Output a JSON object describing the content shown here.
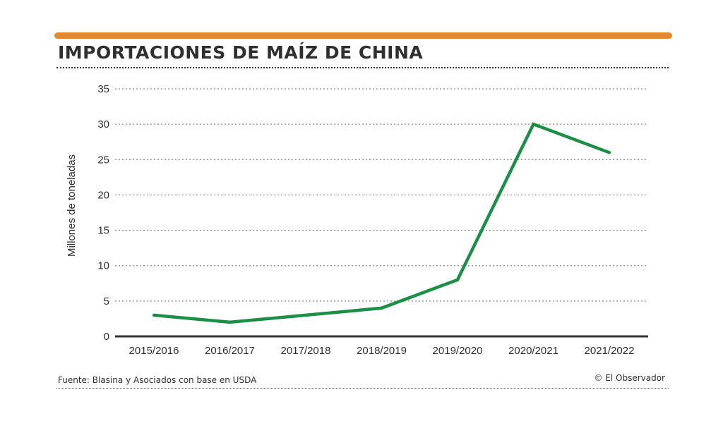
{
  "header": {
    "title": "IMPORTACIONES DE MAÍZ DE CHINA"
  },
  "footer": {
    "source": "Fuente: Blasina y Asociados con base en USDA",
    "credit": "© El Observador"
  },
  "colors": {
    "accent_bar": "#e58a2c",
    "line": "#1a8f45",
    "text": "#2f2f2f",
    "grid": "#8a8a8a"
  },
  "chart_data": {
    "type": "line",
    "title": "IMPORTACIONES DE MAÍZ DE CHINA",
    "xlabel": "",
    "ylabel": "Millones de toneladas",
    "categories": [
      "2015/2016",
      "2016/2017",
      "2017/2018",
      "2018/2019",
      "2019/2020",
      "2020/2021",
      "2021/2022"
    ],
    "values": [
      3,
      2,
      3,
      4,
      8,
      30,
      26
    ],
    "ylim": [
      0,
      35
    ],
    "yticks": [
      0,
      5,
      10,
      15,
      20,
      25,
      30,
      35
    ],
    "grid": true,
    "grid_style": "dotted horizontal",
    "legend": "none"
  }
}
